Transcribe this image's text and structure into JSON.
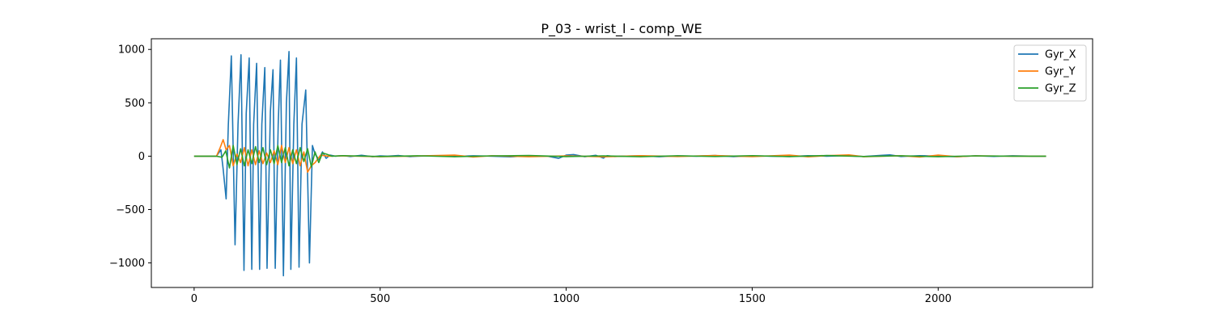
{
  "chart_data": {
    "type": "line",
    "title": "P_03 - wrist_l - comp_WE",
    "xlabel": "",
    "ylabel": "",
    "xlim": [
      -115,
      2415
    ],
    "ylim": [
      -1230,
      1100
    ],
    "xticks": [
      0,
      500,
      1000,
      1500,
      2000
    ],
    "xtick_labels": [
      "0",
      "500",
      "1000",
      "1500",
      "2000"
    ],
    "yticks": [
      -1000,
      -500,
      0,
      500,
      1000
    ],
    "ytick_labels": [
      "−1000",
      "−500",
      "0",
      "500",
      "1000"
    ],
    "grid": false,
    "legend_position": "top-right",
    "series": [
      {
        "name": "Gyr_X",
        "color": "#1f77b4",
        "x": [
          0,
          60,
          72,
          78,
          86,
          92,
          100,
          110,
          118,
          126,
          134,
          140,
          148,
          155,
          160,
          168,
          176,
          182,
          190,
          196,
          205,
          212,
          218,
          226,
          232,
          240,
          248,
          255,
          260,
          268,
          275,
          282,
          290,
          300,
          310,
          318,
          325,
          335,
          345,
          355,
          365,
          380,
          400,
          420,
          450,
          480,
          500,
          520,
          550,
          580,
          600,
          650,
          700,
          750,
          800,
          850,
          900,
          950,
          980,
          1000,
          1020,
          1050,
          1080,
          1100,
          1110,
          1130,
          1150,
          1200,
          1250,
          1300,
          1350,
          1400,
          1450,
          1500,
          1550,
          1600,
          1650,
          1700,
          1750,
          1800,
          1850,
          1870,
          1900,
          1950,
          2000,
          2050,
          2100,
          2150,
          2200,
          2250,
          2290
        ],
        "y": [
          0,
          0,
          60,
          -120,
          -400,
          300,
          940,
          -830,
          300,
          950,
          -1070,
          400,
          920,
          -1060,
          300,
          870,
          -1060,
          300,
          830,
          -1050,
          420,
          810,
          -1050,
          300,
          900,
          -1120,
          500,
          980,
          -1060,
          300,
          920,
          -1040,
          300,
          620,
          -1000,
          100,
          20,
          -30,
          40,
          -20,
          10,
          0,
          5,
          -3,
          8,
          -5,
          3,
          0,
          6,
          -4,
          0,
          5,
          -3,
          4,
          0,
          -6,
          3,
          0,
          -20,
          10,
          15,
          -5,
          8,
          -18,
          5,
          -3,
          0,
          4,
          -5,
          3,
          0,
          6,
          -4,
          3,
          0,
          -3,
          5,
          0,
          4,
          -3,
          8,
          12,
          -3,
          5,
          0,
          -5,
          3,
          -2,
          4,
          0,
          0
        ]
      },
      {
        "name": "Gyr_Y",
        "color": "#ff7f0e",
        "x": [
          0,
          60,
          70,
          78,
          86,
          95,
          105,
          115,
          125,
          135,
          145,
          155,
          165,
          175,
          185,
          195,
          205,
          215,
          225,
          235,
          245,
          255,
          265,
          275,
          285,
          295,
          305,
          315,
          325,
          340,
          360,
          400,
          500,
          600,
          700,
          750,
          800,
          900,
          1000,
          1100,
          1200,
          1300,
          1400,
          1500,
          1600,
          1650,
          1700,
          1760,
          1800,
          1900,
          1950,
          2000,
          2050,
          2100,
          2200,
          2290
        ],
        "y": [
          0,
          0,
          80,
          155,
          60,
          100,
          -90,
          20,
          -60,
          80,
          -90,
          60,
          -80,
          50,
          -70,
          30,
          -60,
          50,
          -80,
          100,
          -60,
          80,
          -70,
          60,
          -90,
          40,
          -150,
          -90,
          -60,
          10,
          0,
          3,
          -5,
          2,
          10,
          -8,
          4,
          -5,
          3,
          -6,
          5,
          -3,
          6,
          -4,
          10,
          -6,
          5,
          12,
          -5,
          4,
          -8,
          10,
          -5,
          3,
          0,
          0
        ]
      },
      {
        "name": "Gyr_Z",
        "color": "#2ca02c",
        "x": [
          0,
          60,
          75,
          85,
          95,
          105,
          115,
          125,
          135,
          145,
          155,
          165,
          175,
          185,
          195,
          205,
          215,
          225,
          235,
          245,
          255,
          265,
          275,
          285,
          295,
          305,
          315,
          325,
          335,
          345,
          355,
          370,
          400,
          500,
          600,
          700,
          800,
          900,
          1000,
          1100,
          1200,
          1300,
          1400,
          1500,
          1600,
          1700,
          1800,
          1900,
          2000,
          2100,
          2200,
          2290
        ],
        "y": [
          0,
          0,
          -10,
          50,
          -110,
          100,
          -80,
          70,
          -90,
          60,
          -70,
          90,
          -60,
          80,
          -80,
          60,
          -70,
          100,
          -60,
          80,
          -90,
          60,
          -70,
          80,
          -50,
          70,
          -100,
          40,
          -60,
          30,
          20,
          0,
          5,
          -3,
          4,
          -5,
          3,
          6,
          -4,
          3,
          -5,
          4,
          -3,
          5,
          -4,
          6,
          -3,
          4,
          -5,
          3,
          0,
          0
        ]
      }
    ]
  }
}
